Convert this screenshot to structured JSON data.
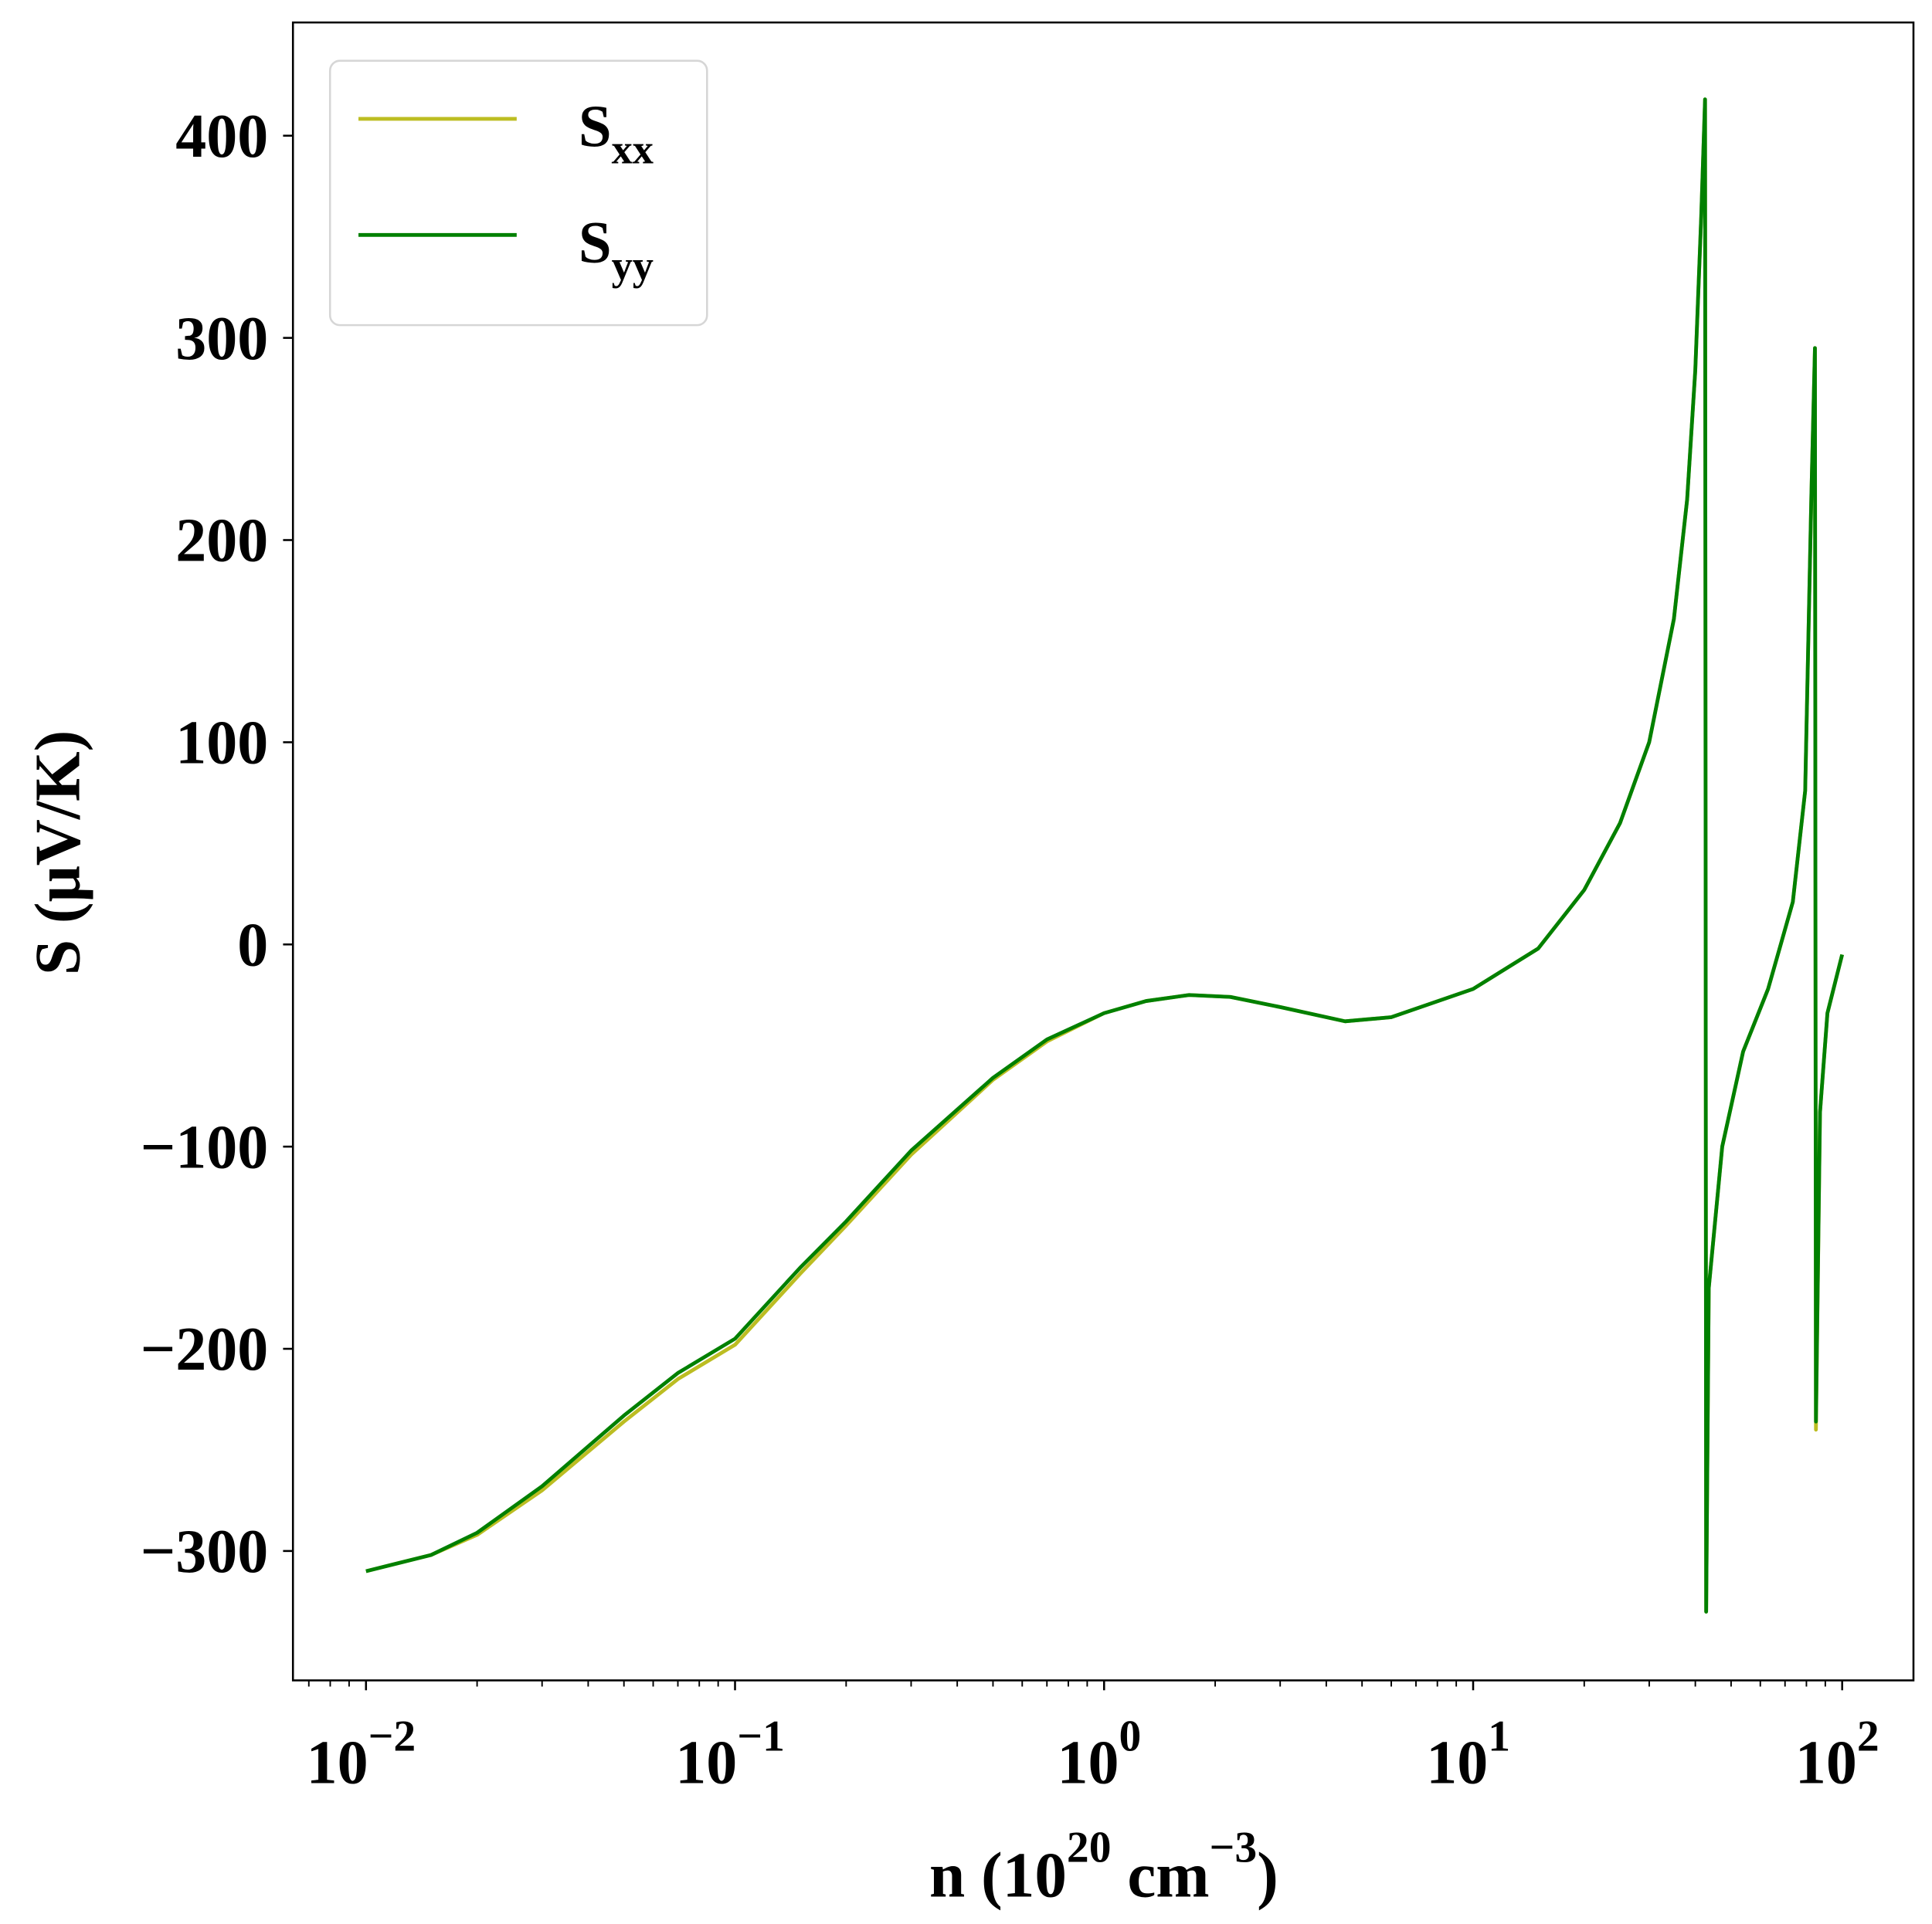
{
  "chart_data": {
    "type": "line",
    "title": "",
    "xlabel": "n (10^20 cm^-3)",
    "xlabel_parts": {
      "main": "n (10",
      "sup1": "20",
      "mid": " cm",
      "sup2": "−3",
      "end": ")"
    },
    "ylabel": "S (μV/K)",
    "xscale": "log",
    "xlim": [
      0.00634,
      156
    ],
    "ylim": [
      -364,
      456
    ],
    "grid": false,
    "legend_position": "top-left",
    "xticks": [
      {
        "value": 0.01,
        "base": "10",
        "exp": "−2"
      },
      {
        "value": 0.1,
        "base": "10",
        "exp": "−1"
      },
      {
        "value": 1,
        "base": "10",
        "exp": "0"
      },
      {
        "value": 10,
        "base": "10",
        "exp": "1"
      },
      {
        "value": 100,
        "base": "10",
        "exp": "2"
      }
    ],
    "yticks": [
      {
        "value": -300,
        "label": "−300"
      },
      {
        "value": -200,
        "label": "−200"
      },
      {
        "value": -100,
        "label": "−100"
      },
      {
        "value": 0,
        "label": "0"
      },
      {
        "value": 100,
        "label": "100"
      },
      {
        "value": 200,
        "label": "200"
      },
      {
        "value": 300,
        "label": "300"
      },
      {
        "value": 400,
        "label": "400"
      }
    ],
    "series": [
      {
        "name": "S_xx",
        "label_main": "S",
        "label_sub": "xx",
        "color": "#bcbd22",
        "x": [
          0.01,
          0.015,
          0.02,
          0.03,
          0.05,
          0.07,
          0.1,
          0.15,
          0.2,
          0.3,
          0.5,
          0.7,
          1,
          1.3,
          1.7,
          2.2,
          3,
          4.5,
          6,
          10,
          15,
          20,
          25,
          30,
          35,
          38,
          40,
          41.5,
          42.5,
          42.8,
          43.5,
          47.3,
          53.9,
          63,
          73.5,
          79.4,
          82.5,
          84.4,
          84.9,
          87.1,
          91.2,
          100
        ],
        "y": [
          -310,
          -302,
          -292,
          -270,
          -236,
          -215,
          -198,
          -163,
          -139,
          -104,
          -67,
          -48,
          -34,
          -28,
          -25,
          -26,
          -31,
          -38,
          -36,
          -22,
          -2,
          27,
          60,
          100,
          161,
          220,
          284,
          360,
          418,
          -330,
          -170,
          -100,
          -53,
          -22,
          21,
          76,
          222,
          295,
          -240,
          -83,
          -34,
          -5
        ]
      },
      {
        "name": "S_yy",
        "label_main": "S",
        "label_sub": "yy",
        "color": "#008000",
        "x": [
          0.01,
          0.015,
          0.02,
          0.03,
          0.05,
          0.07,
          0.1,
          0.15,
          0.2,
          0.3,
          0.5,
          0.7,
          1,
          1.3,
          1.7,
          2.2,
          3,
          4.5,
          6,
          10,
          15,
          20,
          25,
          30,
          35,
          38,
          40,
          41.5,
          42.5,
          42.8,
          43.5,
          47.3,
          53.9,
          63,
          73.5,
          79.4,
          82.5,
          84.4,
          84.9,
          87.1,
          91.2,
          100
        ],
        "y": [
          -310,
          -302,
          -291,
          -268,
          -233,
          -212,
          -195,
          -160,
          -137,
          -102,
          -66,
          -47,
          -34,
          -28,
          -25,
          -26,
          -31,
          -38,
          -36,
          -22,
          -2,
          27,
          60,
          100,
          161,
          220,
          284,
          360,
          418,
          -330,
          -170,
          -100,
          -53,
          -22,
          21,
          76,
          222,
          295,
          -236,
          -83,
          -34,
          -5
        ]
      }
    ]
  }
}
